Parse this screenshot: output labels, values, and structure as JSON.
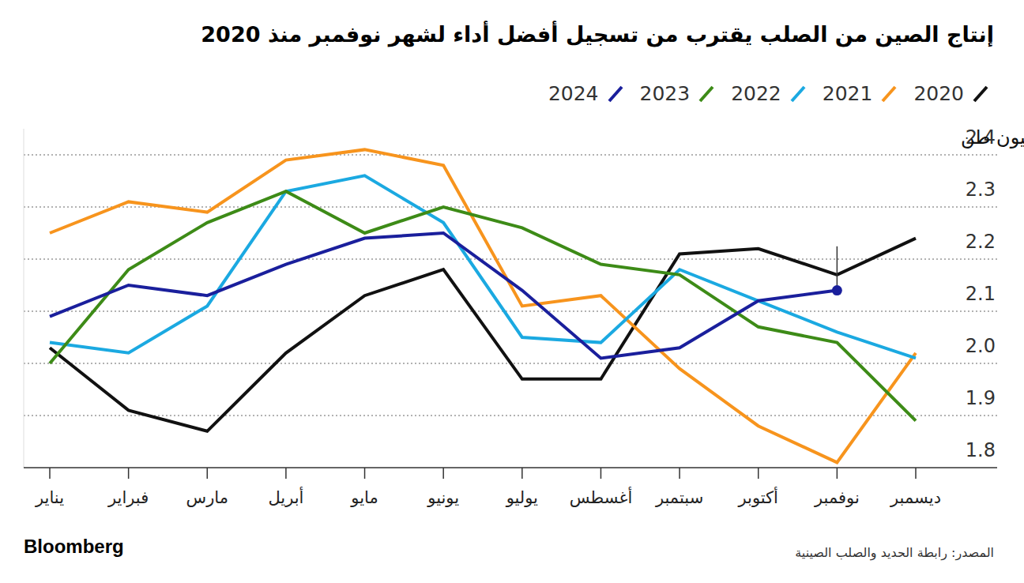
{
  "chart_data": {
    "type": "line",
    "title": "إنتاج الصين من الصلب يقترب من تسجيل أفضل أداء لشهر نوفمبر منذ 2020",
    "y_label": "مليون طن",
    "source": "المصدر: رابطة الحديد والصلب الصينية",
    "brand": "Bloomberg",
    "categories": [
      "يناير",
      "فبراير",
      "مارس",
      "أبريل",
      "مايو",
      "يونيو",
      "يوليو",
      "أغسطس",
      "سبتمبر",
      "أكتوبر",
      "نوفمبر",
      "ديسمبر"
    ],
    "series": [
      {
        "name": "2020",
        "color": "#111111",
        "values": [
          2.03,
          1.91,
          1.87,
          2.02,
          2.13,
          2.18,
          1.97,
          1.97,
          2.21,
          2.22,
          2.17,
          2.24
        ]
      },
      {
        "name": "2021",
        "color": "#f7941d",
        "values": [
          2.25,
          2.31,
          2.29,
          2.39,
          2.41,
          2.38,
          2.11,
          2.13,
          1.99,
          1.88,
          1.81,
          2.02
        ]
      },
      {
        "name": "2022",
        "color": "#1ba9e1",
        "values": [
          2.04,
          2.02,
          2.11,
          2.33,
          2.36,
          2.27,
          2.05,
          2.04,
          2.18,
          2.12,
          2.06,
          2.01
        ]
      },
      {
        "name": "2023",
        "color": "#3d8b17",
        "values": [
          2.0,
          2.18,
          2.27,
          2.33,
          2.25,
          2.3,
          2.26,
          2.19,
          2.17,
          2.07,
          2.04,
          1.89
        ]
      },
      {
        "name": "2024",
        "color": "#1a1f9c",
        "values": [
          2.09,
          2.15,
          2.13,
          2.19,
          2.24,
          2.25,
          2.14,
          2.01,
          2.03,
          2.12,
          2.14,
          null
        ]
      }
    ],
    "ylim": [
      1.8,
      2.45
    ],
    "yticks": [
      1.8,
      1.9,
      {
        "value": 2,
        "label": "2.0"
      },
      2.1,
      2.2,
      2.3,
      2.4
    ],
    "grid": true,
    "legend": "top-right"
  }
}
